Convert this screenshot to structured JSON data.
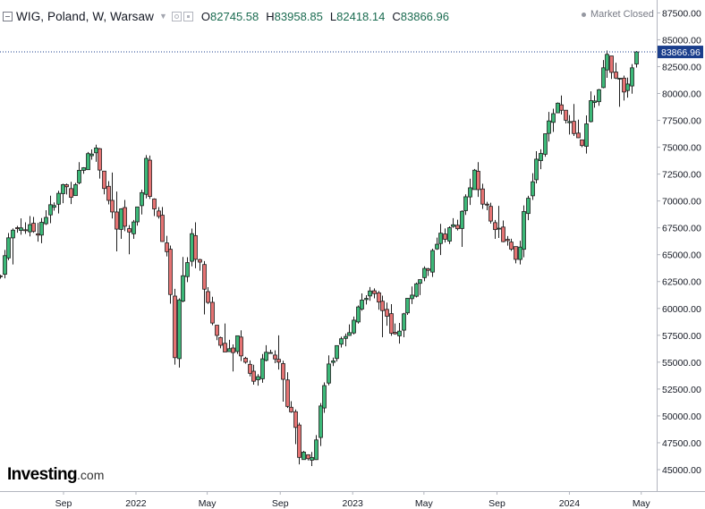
{
  "header": {
    "symbol": "WIG, Poland, W, Warsaw",
    "open_label": "O",
    "open": "82745.58",
    "high_label": "H",
    "high": "83958.85",
    "low_label": "L",
    "low": "82418.14",
    "close_label": "C",
    "close": "83866.96",
    "market_status": "Market Closed"
  },
  "logo": {
    "text": "Investing",
    "suffix": ".com"
  },
  "chart_data": {
    "type": "candlestick",
    "title": "WIG, Poland, W, Warsaw",
    "ylim": [
      43000,
      88700
    ],
    "y_ticks": [
      87500,
      85000,
      82500,
      80000,
      77500,
      75000,
      72500,
      70000,
      67500,
      65000,
      62500,
      60000,
      57500,
      55000,
      52500,
      50000,
      47500,
      45000
    ],
    "y_tick_labels": [
      "87500.00",
      "85000.00",
      "82500.00",
      "80000.00",
      "77500.00",
      "75000.00",
      "72500.00",
      "70000.00",
      "67500.00",
      "65000.00",
      "62500.00",
      "60000.00",
      "57500.00",
      "55000.00",
      "52500.00",
      "50000.00",
      "47500.00",
      "45000.00"
    ],
    "x_ticks": [
      {
        "date": "2021-09-01",
        "label": "Sep"
      },
      {
        "date": "2022-01-01",
        "label": "2022"
      },
      {
        "date": "2022-05-01",
        "label": "May"
      },
      {
        "date": "2022-09-01",
        "label": "Sep"
      },
      {
        "date": "2023-01-01",
        "label": "2023"
      },
      {
        "date": "2023-05-01",
        "label": "May"
      },
      {
        "date": "2023-09-01",
        "label": "Sep"
      },
      {
        "date": "2024-01-01",
        "label": "2024"
      },
      {
        "date": "2024-05-01",
        "label": "May"
      }
    ],
    "x_range": [
      "2021-05-17",
      "2024-05-27"
    ],
    "last_price": 83866.96,
    "last_price_label": "83866.96",
    "colors": {
      "up": "#26a69a",
      "down": "#ef5350",
      "up_fill": "#3cb878",
      "down_fill": "#e57373",
      "last_line": "#1a3e8c"
    },
    "grid": false,
    "series_points": [
      [
        "2021-05-17",
        63000
      ],
      [
        "2021-05-24",
        65500
      ],
      [
        "2021-06-07",
        67200
      ],
      [
        "2021-06-21",
        67800
      ],
      [
        "2021-07-05",
        67200
      ],
      [
        "2021-07-19",
        67400
      ],
      [
        "2021-08-02",
        68800
      ],
      [
        "2021-08-16",
        69500
      ],
      [
        "2021-08-30",
        71400
      ],
      [
        "2021-09-13",
        71000
      ],
      [
        "2021-09-27",
        72800
      ],
      [
        "2021-10-11",
        74000
      ],
      [
        "2021-10-25",
        75000
      ],
      [
        "2021-11-01",
        73200
      ],
      [
        "2021-11-15",
        70000
      ],
      [
        "2021-11-29",
        67500
      ],
      [
        "2021-12-06",
        68800
      ],
      [
        "2021-12-20",
        66800
      ],
      [
        "2022-01-03",
        68800
      ],
      [
        "2022-01-17",
        73500
      ],
      [
        "2022-01-24",
        71000
      ],
      [
        "2022-02-07",
        68000
      ],
      [
        "2022-02-21",
        65500
      ],
      [
        "2022-03-07",
        56000
      ],
      [
        "2022-03-14",
        61000
      ],
      [
        "2022-03-28",
        64500
      ],
      [
        "2022-04-04",
        66500
      ],
      [
        "2022-04-18",
        63800
      ],
      [
        "2022-05-02",
        60500
      ],
      [
        "2022-05-16",
        57500
      ],
      [
        "2022-05-30",
        55300
      ],
      [
        "2022-06-13",
        56500
      ],
      [
        "2022-06-20",
        57200
      ],
      [
        "2022-07-04",
        55200
      ],
      [
        "2022-07-18",
        53200
      ],
      [
        "2022-08-01",
        54800
      ],
      [
        "2022-08-15",
        56500
      ],
      [
        "2022-08-29",
        54600
      ],
      [
        "2022-09-12",
        51000
      ],
      [
        "2022-09-26",
        49500
      ],
      [
        "2022-10-03",
        46500
      ],
      [
        "2022-10-17",
        45800
      ],
      [
        "2022-10-31",
        47800
      ],
      [
        "2022-11-14",
        53500
      ],
      [
        "2022-11-28",
        55400
      ],
      [
        "2022-12-12",
        56500
      ],
      [
        "2022-12-26",
        57400
      ],
      [
        "2023-01-09",
        60500
      ],
      [
        "2023-01-23",
        61500
      ],
      [
        "2023-02-06",
        60800
      ],
      [
        "2023-02-20",
        60000
      ],
      [
        "2023-03-06",
        57500
      ],
      [
        "2023-03-20",
        58400
      ],
      [
        "2023-04-03",
        60500
      ],
      [
        "2023-04-17",
        62500
      ],
      [
        "2023-05-01",
        63500
      ],
      [
        "2023-05-15",
        64800
      ],
      [
        "2023-05-29",
        66400
      ],
      [
        "2023-06-12",
        67800
      ],
      [
        "2023-06-26",
        67000
      ],
      [
        "2023-07-10",
        70500
      ],
      [
        "2023-07-24",
        72200
      ],
      [
        "2023-08-07",
        70000
      ],
      [
        "2023-08-21",
        68500
      ],
      [
        "2023-09-04",
        67500
      ],
      [
        "2023-09-18",
        66000
      ],
      [
        "2023-10-02",
        64000
      ],
      [
        "2023-10-16",
        68400
      ],
      [
        "2023-10-30",
        71800
      ],
      [
        "2023-11-13",
        74800
      ],
      [
        "2023-11-27",
        77000
      ],
      [
        "2023-12-11",
        78500
      ],
      [
        "2023-12-25",
        78000
      ],
      [
        "2024-01-08",
        75700
      ],
      [
        "2024-01-22",
        74800
      ],
      [
        "2024-02-05",
        79000
      ],
      [
        "2024-02-19",
        80400
      ],
      [
        "2024-03-04",
        83500
      ],
      [
        "2024-03-18",
        81000
      ],
      [
        "2024-04-01",
        80500
      ],
      [
        "2024-04-15",
        82000
      ],
      [
        "2024-04-22",
        83867
      ]
    ]
  }
}
